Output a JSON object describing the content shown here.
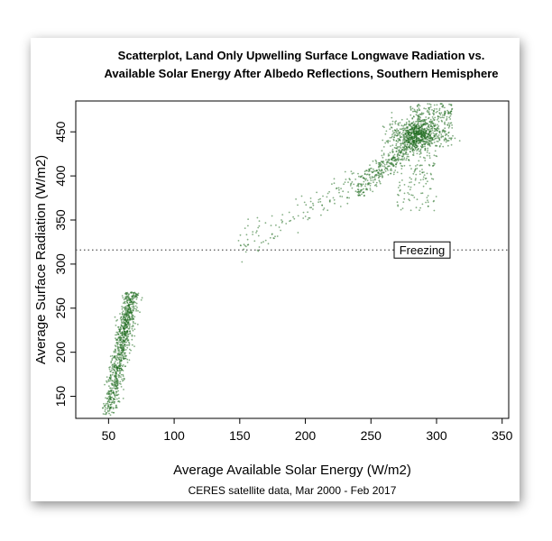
{
  "chart_data": {
    "type": "scatter",
    "title_lines": [
      "Scatterplot, Land Only Upwelling Surface Longwave Radiation vs.",
      "Available Solar Energy After Albedo Reflections, Southern Hemisphere"
    ],
    "xlabel": "Average Available Solar Energy (W/m2)",
    "ylabel": "Average Surface Radiation (W/m2)",
    "xlim": [
      25,
      355
    ],
    "ylim": [
      125,
      485
    ],
    "xticks": [
      50,
      100,
      150,
      200,
      250,
      300,
      350
    ],
    "yticks": [
      150,
      200,
      250,
      300,
      350,
      400,
      450
    ],
    "grid": false,
    "source_note": "CERES satellite data, Mar 2000 - Feb 2017",
    "point_color": "#1f6b1f",
    "reference_line": {
      "y": 316,
      "style": "dotted",
      "label": "Freezing",
      "label_x": 289
    },
    "clusters": [
      {
        "name": "low",
        "x_range": [
          50,
          85
        ],
        "y_range": [
          128,
          268
        ],
        "count": 900,
        "relation": "linear",
        "x_at_ymin": 50,
        "x_at_ymax": 68,
        "x_spread": 3
      },
      {
        "name": "transition",
        "x_range": [
          148,
          250
        ],
        "y_range": [
          322,
          400
        ],
        "count": 150,
        "relation": "linear",
        "x_at_ymin": 148,
        "x_at_ymax": 250,
        "y_spread": 9
      },
      {
        "name": "high-ramp",
        "x_range": [
          240,
          285
        ],
        "y_range": [
          385,
          440
        ],
        "count": 350,
        "relation": "linear",
        "x_at_ymin": 240,
        "x_at_ymax": 285,
        "y_spread": 8
      },
      {
        "name": "high-core",
        "x_center": 285,
        "y_center": 446,
        "x_spread": 10,
        "y_spread": 9,
        "count": 700
      },
      {
        "name": "high-top",
        "x_range": [
          280,
          312
        ],
        "y_range": [
          440,
          482
        ],
        "count": 250
      },
      {
        "name": "high-lower",
        "x_range": [
          270,
          300
        ],
        "y_range": [
          360,
          430
        ],
        "count": 120
      }
    ]
  }
}
